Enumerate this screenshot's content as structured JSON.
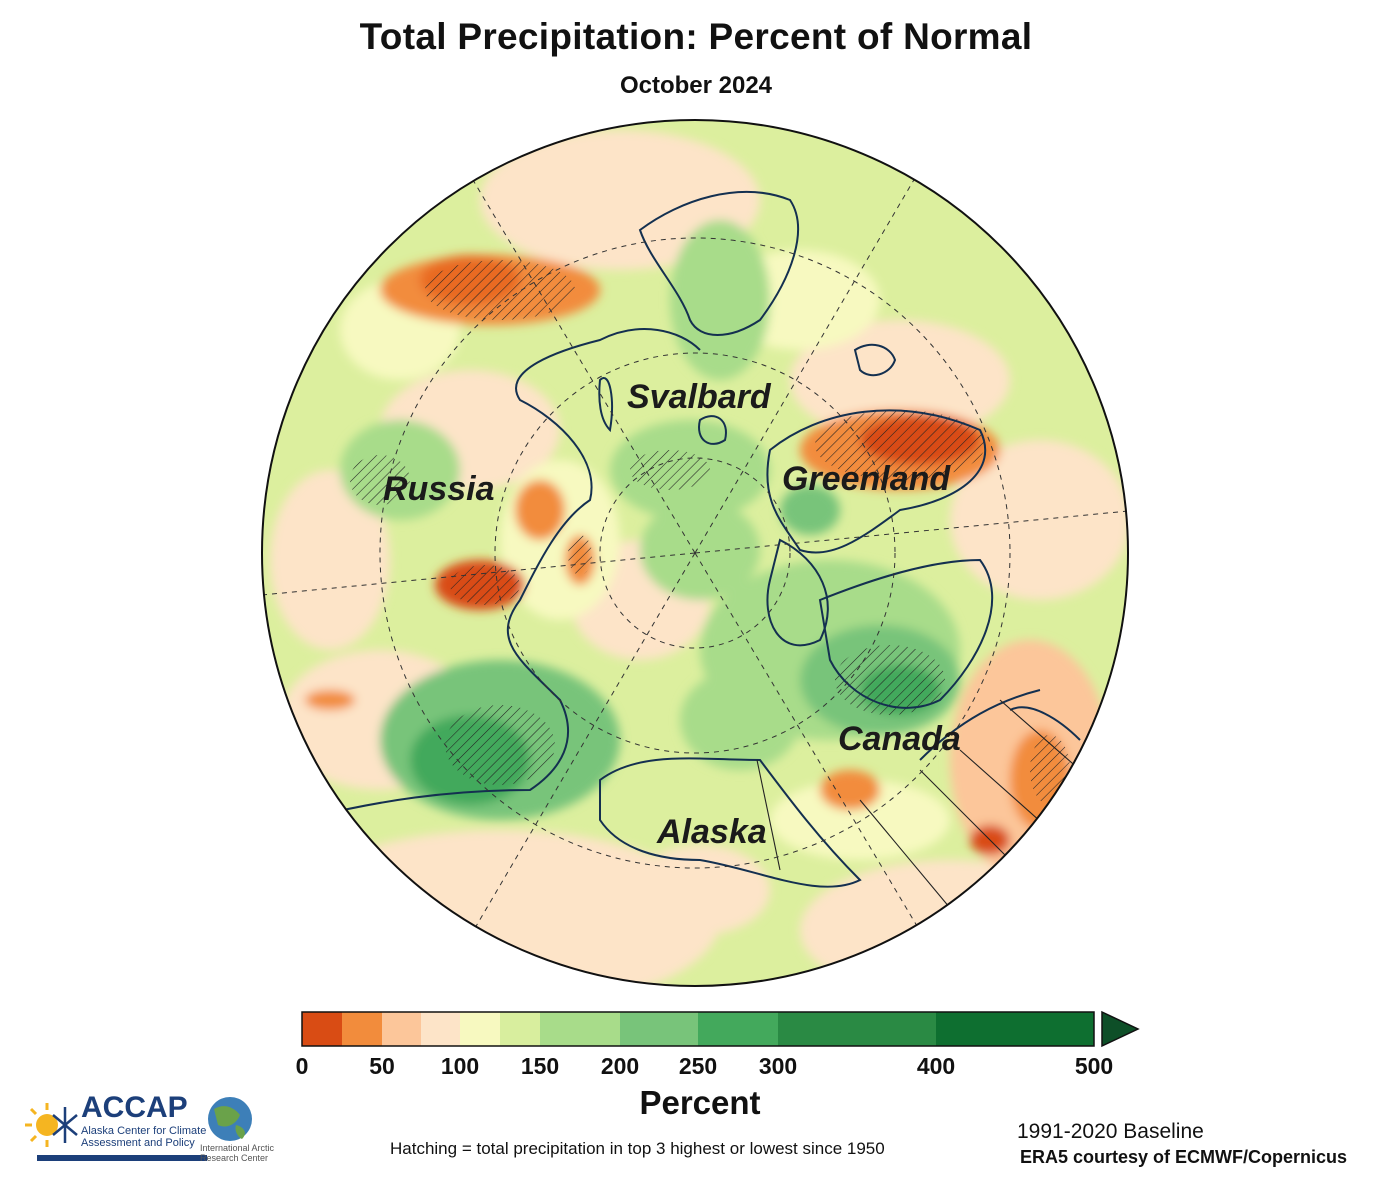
{
  "title": "Total Precipitation: Percent of Normal",
  "subtitle": "October 2024",
  "regions": [
    {
      "key": "svalbard",
      "label": "Svalbard"
    },
    {
      "key": "russia",
      "label": "Russia"
    },
    {
      "key": "greenland",
      "label": "Greenland"
    },
    {
      "key": "canada",
      "label": "Canada"
    },
    {
      "key": "alaska",
      "label": "Alaska"
    }
  ],
  "colorbar": {
    "title": "Percent",
    "bins": [
      {
        "from": 0,
        "to": 25,
        "color": "#d94c14"
      },
      {
        "from": 25,
        "to": 50,
        "color": "#f28c3c"
      },
      {
        "from": 50,
        "to": 75,
        "color": "#fcc69a"
      },
      {
        "from": 75,
        "to": 100,
        "color": "#fde4c8"
      },
      {
        "from": 100,
        "to": 125,
        "color": "#f7f9c0"
      },
      {
        "from": 125,
        "to": 150,
        "color": "#d8ee9e"
      },
      {
        "from": 150,
        "to": 200,
        "color": "#a8dc8a"
      },
      {
        "from": 200,
        "to": 250,
        "color": "#78c47a"
      },
      {
        "from": 250,
        "to": 300,
        "color": "#43a95c"
      },
      {
        "from": 300,
        "to": 400,
        "color": "#2a8a44"
      },
      {
        "from": 400,
        "to": 500,
        "color": "#0e6f30"
      }
    ],
    "ticks": [
      "0",
      "50",
      "100",
      "150",
      "200",
      "250",
      "300",
      "400",
      "500"
    ],
    "extend": "max",
    "extend_color": "#0e4f28"
  },
  "hatching_note": "Hatching = total precipitation in top 3 highest or lowest since 1950",
  "baseline": "1991-2020 Baseline",
  "credit": "ERA5 courtesy of ECMWF/Copernicus",
  "logos": {
    "accap_name": "ACCAP",
    "accap_subtitle": "Alaska Center for Climate Assessment and Policy",
    "iarc_name": "International Arctic Research Center"
  },
  "colors": {
    "coast": "#143050",
    "border": "#222222",
    "grid": "#333333",
    "ocean_base": "#dcef9e"
  }
}
